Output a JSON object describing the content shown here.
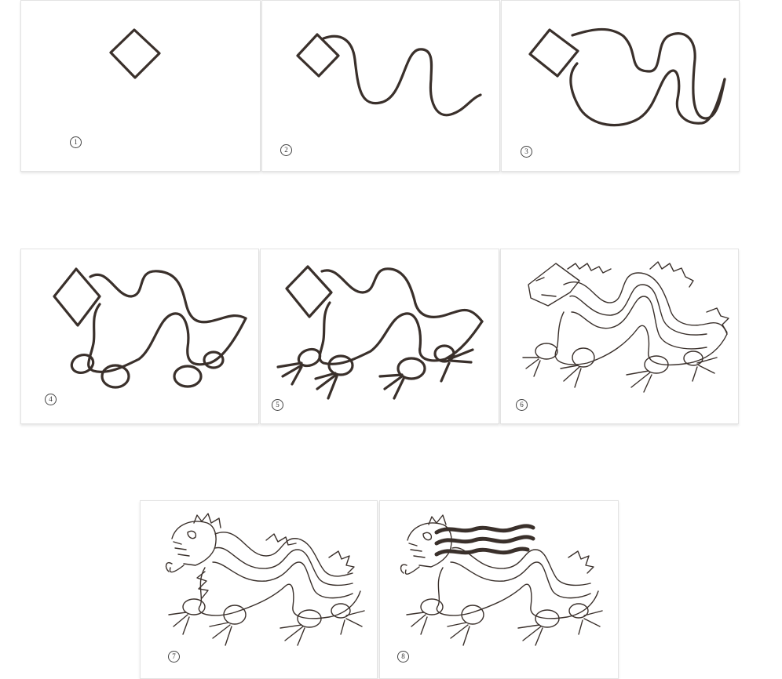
{
  "steps": [
    {
      "number": "1",
      "icon": "diamond-head-sketch"
    },
    {
      "number": "2",
      "icon": "diamond-with-wavy-body-sketch"
    },
    {
      "number": "3",
      "icon": "diamond-with-thick-body-sketch"
    },
    {
      "number": "4",
      "icon": "body-with-leg-ovals-sketch"
    },
    {
      "number": "5",
      "icon": "body-with-claws-sketch"
    },
    {
      "number": "6",
      "icon": "dragon-outline-with-spikes"
    },
    {
      "number": "7",
      "icon": "dragon-with-detailed-head"
    },
    {
      "number": "8",
      "icon": "dragon-with-whiskers"
    }
  ],
  "colors": {
    "ink": "#3a302b",
    "panel_border": "#e3e3e3",
    "background": "#ffffff"
  }
}
